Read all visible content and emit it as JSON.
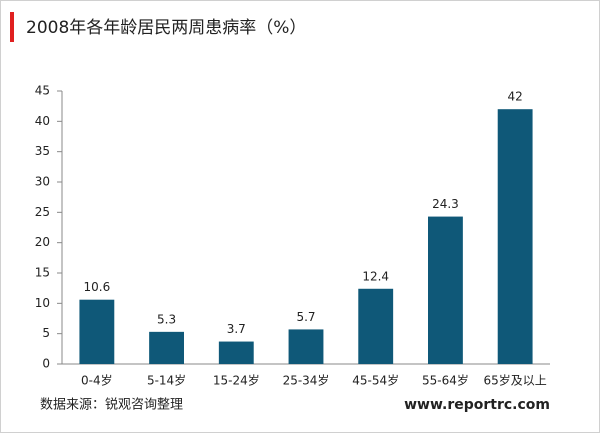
{
  "chart_data": {
    "type": "bar",
    "title": "2008年各年龄居民两周患病率（%）",
    "categories": [
      "0-4岁",
      "5-14岁",
      "15-24岁",
      "25-34岁",
      "45-54岁",
      "55-64岁",
      "65岁及以上"
    ],
    "values": [
      10.6,
      5.3,
      3.7,
      5.7,
      12.4,
      24.3,
      42
    ],
    "color": "#0f5878",
    "ylim": [
      0,
      45
    ],
    "yticks": [
      0,
      5,
      10,
      15,
      20,
      25,
      30,
      35,
      40,
      45
    ],
    "grid": false,
    "source": "数据来源：锐观咨询整理",
    "website": "www.reportrc.com"
  }
}
